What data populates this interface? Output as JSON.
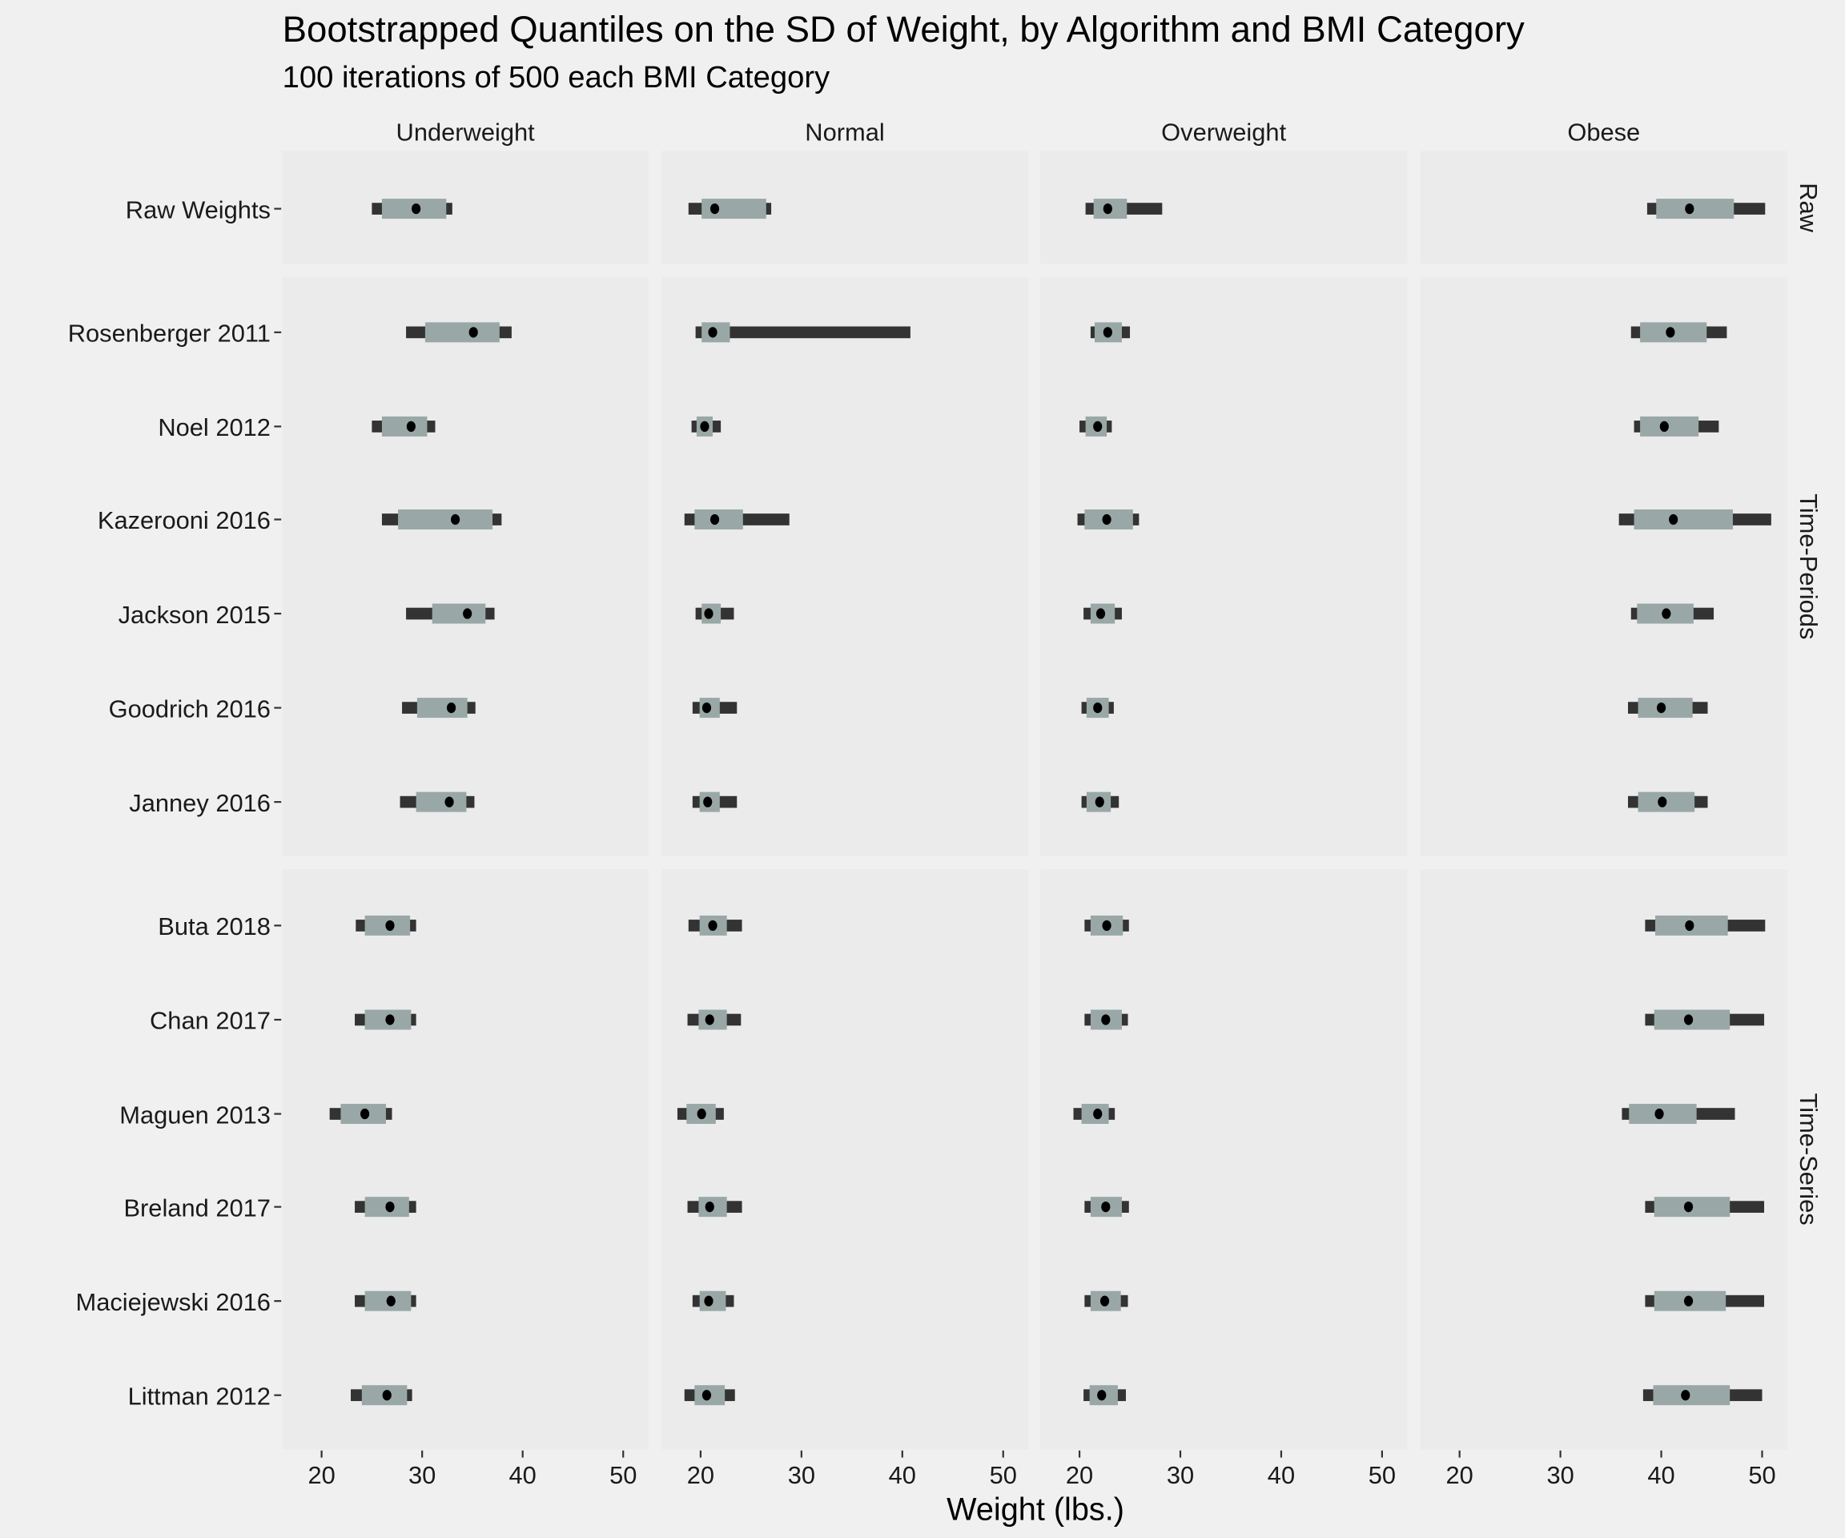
{
  "chart_data": {
    "type": "interval",
    "title": "Bootstrapped Quantiles on the SD of Weight, by Algorithm and BMI Category",
    "subtitle": "100 iterations of 500 each BMI Category",
    "xlabel": "Weight (lbs.)",
    "xlim": [
      16.1,
      52.5
    ],
    "xticks": [
      20,
      30,
      40,
      50
    ],
    "columns": [
      "Underweight",
      "Normal",
      "Overweight",
      "Obese"
    ],
    "groups": [
      {
        "name": "Raw",
        "rows": [
          "Raw Weights"
        ]
      },
      {
        "name": "Time-Periods",
        "rows": [
          "Rosenberger 2011",
          "Noel 2012",
          "Kazerooni 2016",
          "Jackson 2015",
          "Goodrich 2016",
          "Janney 2016"
        ]
      },
      {
        "name": "Time-Series",
        "rows": [
          "Buta 2018",
          "Chan 2017",
          "Maguen 2013",
          "Breland 2017",
          "Maciejewski 2016",
          "Littman 2012"
        ]
      }
    ],
    "value_format": "[outer_low, inner_low, median, inner_high, outer_high]",
    "values": {
      "Raw Weights": [
        [
          25.0,
          26.0,
          29.4,
          32.4,
          33.0
        ],
        [
          18.8,
          20.1,
          21.4,
          26.5,
          27.0
        ],
        [
          20.6,
          21.4,
          22.8,
          24.7,
          28.2
        ],
        [
          38.6,
          39.5,
          42.8,
          47.2,
          50.3
        ]
      ],
      "Rosenberger 2011": [
        [
          28.4,
          30.3,
          35.1,
          37.7,
          38.9
        ],
        [
          19.5,
          20.1,
          21.2,
          22.9,
          40.8
        ],
        [
          21.1,
          21.5,
          22.8,
          24.2,
          25.0
        ],
        [
          37.0,
          37.9,
          40.9,
          44.5,
          46.5
        ]
      ],
      "Noel 2012": [
        [
          25.0,
          26.0,
          28.9,
          30.5,
          31.3
        ],
        [
          19.1,
          19.6,
          20.4,
          21.2,
          22.0
        ],
        [
          20.0,
          20.6,
          21.8,
          22.7,
          23.2
        ],
        [
          37.3,
          37.9,
          40.3,
          43.7,
          45.7
        ]
      ],
      "Kazerooni 2016": [
        [
          26.0,
          27.6,
          33.3,
          37.0,
          37.9
        ],
        [
          18.4,
          19.4,
          21.4,
          24.2,
          28.8
        ],
        [
          19.8,
          20.5,
          22.7,
          25.3,
          25.9
        ],
        [
          35.8,
          37.3,
          41.2,
          47.1,
          50.9
        ]
      ],
      "Jackson 2015": [
        [
          28.4,
          31.0,
          34.5,
          36.3,
          37.2
        ],
        [
          19.5,
          20.1,
          20.8,
          22.0,
          23.3
        ],
        [
          20.4,
          21.1,
          22.1,
          23.5,
          24.2
        ],
        [
          37.0,
          37.6,
          40.5,
          43.2,
          45.2
        ]
      ],
      "Goodrich 2016": [
        [
          28.0,
          29.5,
          32.9,
          34.5,
          35.3
        ],
        [
          19.2,
          19.9,
          20.6,
          21.9,
          23.6
        ],
        [
          20.2,
          20.7,
          21.8,
          22.9,
          23.4
        ],
        [
          36.7,
          37.7,
          40.0,
          43.1,
          44.6
        ]
      ],
      "Janney 2016": [
        [
          27.8,
          29.4,
          32.7,
          34.4,
          35.2
        ],
        [
          19.2,
          19.9,
          20.7,
          21.9,
          23.6
        ],
        [
          20.2,
          20.7,
          22.0,
          23.1,
          23.9
        ],
        [
          36.7,
          37.7,
          40.1,
          43.3,
          44.6
        ]
      ],
      "Buta 2018": [
        [
          23.4,
          24.3,
          26.8,
          28.8,
          29.4
        ],
        [
          18.8,
          19.9,
          21.2,
          22.6,
          24.1
        ],
        [
          20.5,
          21.1,
          22.7,
          24.3,
          24.9
        ],
        [
          38.4,
          39.4,
          42.8,
          46.6,
          50.3
        ]
      ],
      "Chan 2017": [
        [
          23.3,
          24.3,
          26.8,
          28.9,
          29.4
        ],
        [
          18.7,
          19.8,
          20.9,
          22.6,
          24.0
        ],
        [
          20.5,
          21.1,
          22.6,
          24.2,
          24.8
        ],
        [
          38.4,
          39.3,
          42.7,
          46.8,
          50.2
        ]
      ],
      "Maguen 2013": [
        [
          20.8,
          21.9,
          24.3,
          26.4,
          27.0
        ],
        [
          17.7,
          18.6,
          20.1,
          21.5,
          22.3
        ],
        [
          19.4,
          20.2,
          21.8,
          22.9,
          23.5
        ],
        [
          36.1,
          36.8,
          39.8,
          43.5,
          47.3
        ]
      ],
      "Breland 2017": [
        [
          23.3,
          24.3,
          26.8,
          28.7,
          29.4
        ],
        [
          18.7,
          19.8,
          20.9,
          22.6,
          24.1
        ],
        [
          20.5,
          21.1,
          22.6,
          24.2,
          24.9
        ],
        [
          38.4,
          39.3,
          42.7,
          46.8,
          50.2
        ]
      ],
      "Maciejewski 2016": [
        [
          23.3,
          24.3,
          26.9,
          28.9,
          29.4
        ],
        [
          19.2,
          19.9,
          20.8,
          22.5,
          23.3
        ],
        [
          20.5,
          21.1,
          22.5,
          24.1,
          24.8
        ],
        [
          38.4,
          39.3,
          42.7,
          46.4,
          50.2
        ]
      ],
      "Littman 2012": [
        [
          22.9,
          24.0,
          26.5,
          28.5,
          29.0
        ],
        [
          18.4,
          19.4,
          20.6,
          22.4,
          23.4
        ],
        [
          20.4,
          21.0,
          22.2,
          23.8,
          24.6
        ],
        [
          38.2,
          39.2,
          42.4,
          46.8,
          50.0
        ]
      ]
    },
    "colors": {
      "outer": "#333333",
      "inner": "#99a8a6",
      "point": "#000000",
      "panel": "#ebebeb",
      "background": "#f0f0f0"
    }
  }
}
